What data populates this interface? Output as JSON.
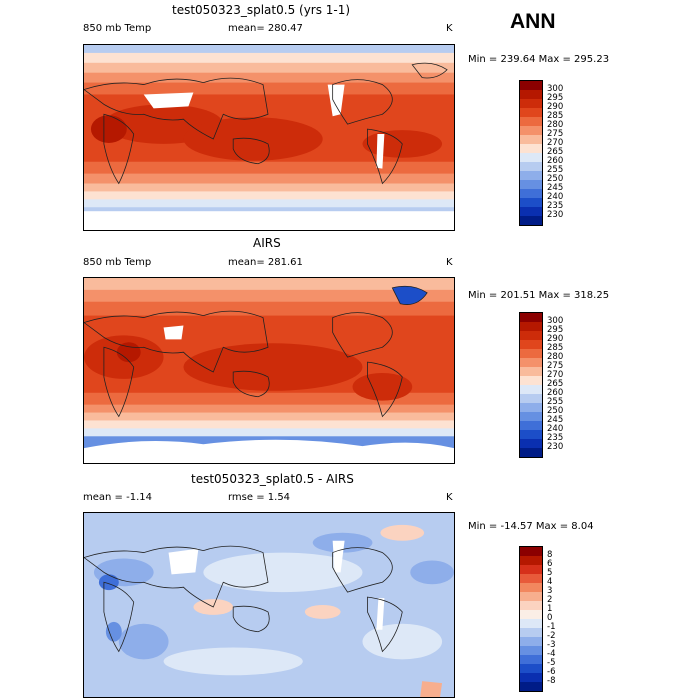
{
  "season": "ANN",
  "panels": [
    {
      "title": "test050323_splat0.5 (yrs 1-1)",
      "left_label": "850 mb Temp",
      "center_label": "mean= 280.47",
      "units": "K",
      "stats": "Min = 239.64  Max = 295.23",
      "colorbar_labels": [
        "300",
        "295",
        "290",
        "285",
        "280",
        "275",
        "270",
        "265",
        "260",
        "255",
        "250",
        "245",
        "240",
        "235",
        "230"
      ],
      "colors": [
        "#8b0000",
        "#b51800",
        "#cd2c0a",
        "#e0461d",
        "#ec6a3f",
        "#f4916a",
        "#f9bb9c",
        "#fde2d2",
        "#dde8f7",
        "#b7ccf0",
        "#8eaeea",
        "#6690e2",
        "#3f6fd8",
        "#1c4ec8",
        "#0a2fb0",
        "#001c87"
      ]
    },
    {
      "title": "AIRS",
      "left_label": "850 mb Temp",
      "center_label": "mean= 281.61",
      "units": "K",
      "stats": "Min = 201.51  Max = 318.25",
      "colorbar_labels": [
        "300",
        "295",
        "290",
        "285",
        "280",
        "275",
        "270",
        "265",
        "260",
        "255",
        "250",
        "245",
        "240",
        "235",
        "230"
      ],
      "colors": [
        "#8b0000",
        "#b51800",
        "#cd2c0a",
        "#e0461d",
        "#ec6a3f",
        "#f4916a",
        "#f9bb9c",
        "#fde2d2",
        "#dde8f7",
        "#b7ccf0",
        "#8eaeea",
        "#6690e2",
        "#3f6fd8",
        "#1c4ec8",
        "#0a2fb0",
        "#001c87"
      ]
    },
    {
      "title": "test050323_splat0.5 - AIRS",
      "left_label": "mean =  -1.14",
      "center_label": "rmse =   1.54",
      "units": "K",
      "stats": "Min = -14.57  Max =   8.04",
      "colorbar_labels": [
        "8",
        "6",
        "5",
        "4",
        "3",
        "2",
        "1",
        "0",
        "-1",
        "-2",
        "-3",
        "-4",
        "-5",
        "-6",
        "-8"
      ],
      "colors": [
        "#8b0000",
        "#b51800",
        "#d6301a",
        "#e85a3a",
        "#f2875f",
        "#f7ae8e",
        "#fbd3c0",
        "#fbeee6",
        "#dde8f7",
        "#b7ccf0",
        "#8eaeea",
        "#6690e2",
        "#3f6fd8",
        "#1c4ec8",
        "#0a2fb0",
        "#001c87"
      ]
    }
  ]
}
